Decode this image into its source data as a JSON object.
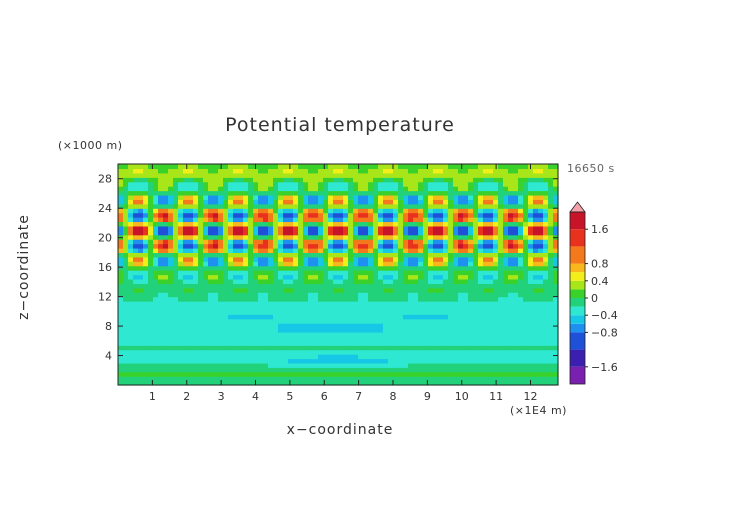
{
  "chart_data": {
    "type": "heatmap",
    "title": "Potential temperature",
    "xlabel": "x−coordinate",
    "ylabel": "z−coordinate",
    "x_units": "(×1E4 m)",
    "y_units": "(×1000 m)",
    "time_label": "16650 s",
    "xlim": [
      0,
      12.8
    ],
    "ylim": [
      0,
      30
    ],
    "x_ticks": [
      1,
      2,
      3,
      4,
      5,
      6,
      7,
      8,
      9,
      10,
      11,
      12
    ],
    "y_ticks": [
      4,
      8,
      12,
      16,
      20,
      24,
      28
    ],
    "colorbar": {
      "min": -2.0,
      "max": 2.0,
      "labels": [
        "1.6",
        "0.8",
        "0.4",
        "0",
        "−0.4",
        "−0.8",
        "−1.6"
      ],
      "label_values": [
        1.6,
        0.8,
        0.4,
        0,
        -0.4,
        -0.8,
        -1.6
      ],
      "levels": [
        {
          "from": -2.0,
          "to": -1.6,
          "color": "#7a20b0"
        },
        {
          "from": -1.6,
          "to": -1.2,
          "color": "#3a1fb0"
        },
        {
          "from": -1.2,
          "to": -0.8,
          "color": "#1e50d8"
        },
        {
          "from": -0.8,
          "to": -0.6,
          "color": "#1e90f0"
        },
        {
          "from": -0.6,
          "to": -0.4,
          "color": "#16c8e6"
        },
        {
          "from": -0.4,
          "to": -0.2,
          "color": "#2ee8d2"
        },
        {
          "from": -0.2,
          "to": 0.0,
          "color": "#22d27a"
        },
        {
          "from": 0.0,
          "to": 0.2,
          "color": "#3ad22a"
        },
        {
          "from": 0.2,
          "to": 0.4,
          "color": "#a8e61a"
        },
        {
          "from": 0.4,
          "to": 0.6,
          "color": "#f2ee1a"
        },
        {
          "from": 0.6,
          "to": 0.8,
          "color": "#f8b81c"
        },
        {
          "from": 0.8,
          "to": 1.2,
          "color": "#f4781c"
        },
        {
          "from": 1.2,
          "to": 1.6,
          "color": "#e8321e"
        },
        {
          "from": 1.6,
          "to": 2.0,
          "color": "#c81428"
        }
      ]
    },
    "field_description": "Layered potential-temperature perturbation: near-zero cyan background below ~13 km with weak negative blobs at ~3, 6-9 km; strong alternating positive/negative wave cells between ~15 and ~27 km, strongest (up to ~1.6) near 18-25 km; greenish band 28-30 km."
  }
}
